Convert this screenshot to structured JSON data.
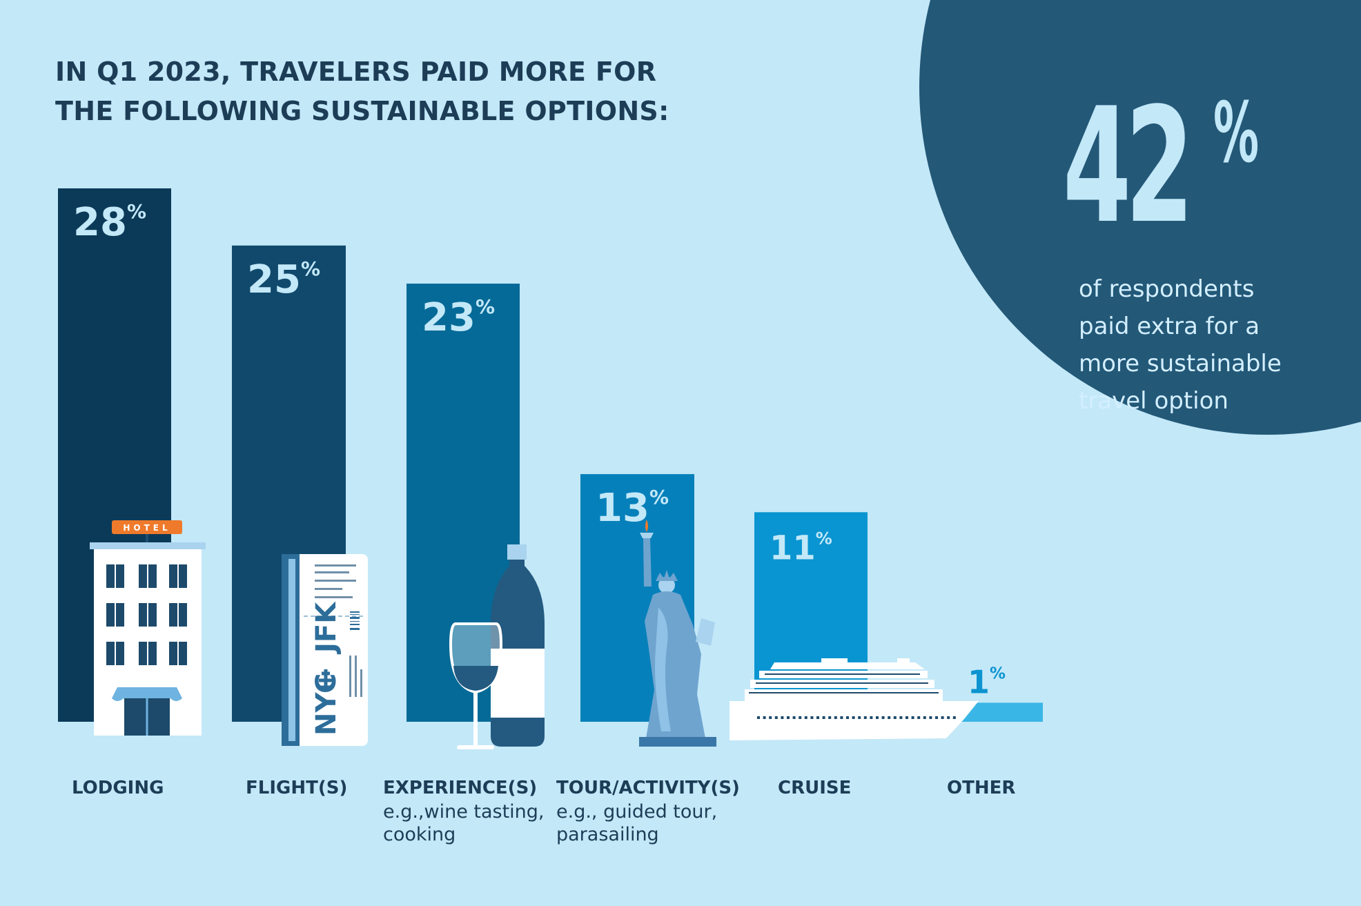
{
  "title": {
    "line1": "IN Q1 2023, TRAVELERS PAID MORE FOR",
    "line2": "THE FOLLOWING SUSTAINABLE OPTIONS:"
  },
  "highlight": {
    "value": "42",
    "unit": "%",
    "caption": [
      "of respondents",
      "paid extra for a",
      "more sustainable",
      "travel option"
    ]
  },
  "colors": {
    "background": "#c3e8f8",
    "circle": "#235877",
    "bars": [
      "#0b3a58",
      "#10496c",
      "#056a97",
      "#0680ba",
      "#0995d1",
      "#3ab6e6"
    ],
    "bar_label": "#c3e8f8",
    "small_label": "#0b94d0"
  },
  "icons": [
    "hotel-icon",
    "boarding-pass-icon",
    "wine-icon",
    "statue-of-liberty-icon",
    "cruise-ship-icon"
  ],
  "chart_data": {
    "type": "bar",
    "categories": [
      "LODGING",
      "FLIGHT(S)",
      "EXPERIENCE(S)",
      "TOUR/ACTIVITY(S)",
      "CRUISE",
      "OTHER"
    ],
    "notes": [
      [],
      [],
      [
        "e.g.,wine tasting,",
        "cooking"
      ],
      [
        "e.g., guided tour,",
        "parasailing"
      ],
      [],
      []
    ],
    "values": [
      28,
      25,
      23,
      13,
      11,
      1
    ],
    "value_labels": [
      "28",
      "25",
      "23",
      "13",
      "11",
      "1"
    ],
    "unit": "%",
    "ylim": [
      0,
      28
    ],
    "title": "IN Q1 2023, TRAVELERS PAID MORE FOR THE FOLLOWING SUSTAINABLE OPTIONS:",
    "xlabel": "",
    "ylabel": "",
    "grid": false
  },
  "hotel_sign": "HOTEL",
  "ticket": {
    "from": "NYC",
    "to": "JFK"
  }
}
